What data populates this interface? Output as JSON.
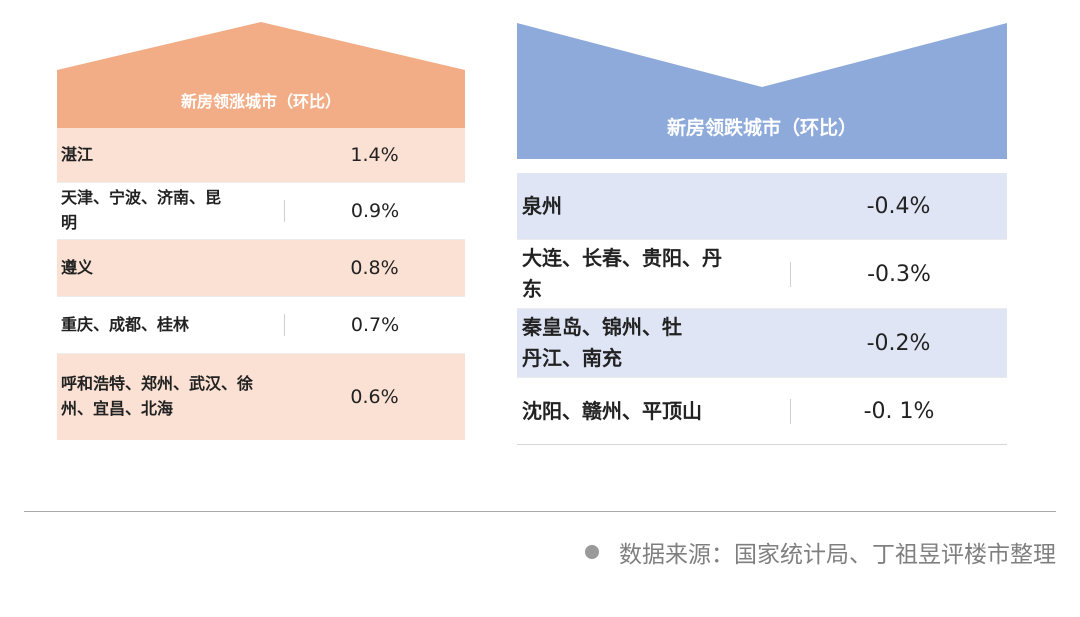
{
  "colors": {
    "rising_header": "#f2ad86",
    "rising_row_shade": "#fbe1d3",
    "falling_header": "#8eaadb",
    "falling_row_shade": "#dfe5f5"
  },
  "rising": {
    "title": "新房领涨城市（环比）",
    "rows": [
      {
        "cities": "湛江",
        "value": "1.4%"
      },
      {
        "cities": "天津、宁波、济南、昆明",
        "value": "0.9%"
      },
      {
        "cities": "遵义",
        "value": "0.8%"
      },
      {
        "cities": "重庆、成都、桂林",
        "value": "0.7%"
      },
      {
        "cities": "呼和浩特、郑州、武汉、徐州、宜昌、北海",
        "value": "0.6%"
      }
    ]
  },
  "falling": {
    "title": "新房领跌城市（环比）",
    "rows": [
      {
        "cities": "泉州",
        "value": "-0.4%"
      },
      {
        "cities": "大连、长春、贵阳、丹东",
        "value": "-0.3%"
      },
      {
        "cities": "秦皇岛、锦州、牡丹江、南充",
        "value": "-0.2%"
      },
      {
        "cities": "沈阳、赣州、平顶山",
        "value": "-0. 1%"
      }
    ]
  },
  "footer": {
    "bullet_icon": "circle-bullet",
    "source": "数据来源：国家统计局、丁祖昱评楼市整理"
  }
}
